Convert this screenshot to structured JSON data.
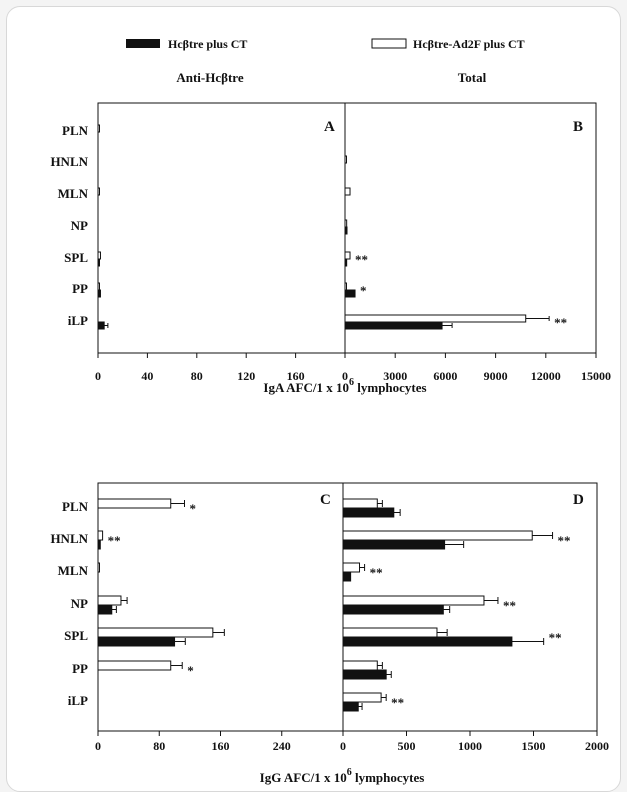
{
  "legend": {
    "series1": "Hcβtre plus CT",
    "series2": "Hcβtre-Ad2F plus CT"
  },
  "headers": {
    "left": "Anti-Hcβtre",
    "right": "Total"
  },
  "xlabel_top": {
    "main": "IgA AFC/1 x 10",
    "sup": "6",
    "tail": " lymphocytes"
  },
  "xlabel_bottom": {
    "main": "IgG AFC/1 x 10",
    "sup": "6",
    "tail": " lymphocytes"
  },
  "colors": {
    "series1": "#111111",
    "series2": "#ffffff"
  },
  "chart_data": [
    {
      "panel": "A",
      "type": "bar",
      "orientation": "horizontal",
      "categories": [
        "PLN",
        "HNLN",
        "MLN",
        "NP",
        "SPL",
        "PP",
        "iLP"
      ],
      "xlim": [
        0,
        200
      ],
      "xticks": [
        "0",
        "40",
        "80",
        "120",
        "160"
      ],
      "series": [
        {
          "name": "Hcβtre plus CT",
          "values": [
            0,
            0,
            0,
            0,
            1,
            2,
            5
          ],
          "errors": [
            0,
            0,
            0,
            0,
            0,
            0,
            3
          ]
        },
        {
          "name": "Hcβtre-Ad2F plus CT",
          "values": [
            1,
            0,
            1,
            0,
            2,
            1,
            0
          ],
          "errors": [
            0,
            0,
            0,
            0,
            0,
            0,
            0
          ]
        }
      ],
      "annotations": [
        "",
        "",
        "",
        "",
        "",
        "",
        ""
      ]
    },
    {
      "panel": "B",
      "type": "bar",
      "orientation": "horizontal",
      "categories": [
        "PLN",
        "HNLN",
        "MLN",
        "NP",
        "SPL",
        "PP",
        "iLP"
      ],
      "xlim": [
        0,
        15000
      ],
      "xticks": [
        "0",
        "3000",
        "6000",
        "9000",
        "12000",
        "15000"
      ],
      "series": [
        {
          "name": "Hcβtre plus CT",
          "values": [
            0,
            0,
            0,
            120,
            100,
            600,
            5800
          ],
          "errors": [
            0,
            0,
            0,
            0,
            0,
            0,
            600
          ]
        },
        {
          "name": "Hcβtre-Ad2F plus CT",
          "values": [
            0,
            60,
            300,
            100,
            300,
            40,
            10800
          ],
          "errors": [
            0,
            0,
            0,
            0,
            0,
            0,
            1400
          ]
        }
      ],
      "annotations": [
        "",
        "",
        "",
        "",
        "**",
        "*",
        "**"
      ]
    },
    {
      "panel": "C",
      "type": "bar",
      "orientation": "horizontal",
      "categories": [
        "PLN",
        "HNLN",
        "MLN",
        "NP",
        "SPL",
        "PP",
        "iLP"
      ],
      "xlim": [
        0,
        320
      ],
      "xticks": [
        "0",
        "80",
        "160",
        "240"
      ],
      "series": [
        {
          "name": "Hcβtre plus CT",
          "values": [
            0,
            3,
            0,
            18,
            100,
            0,
            0
          ],
          "errors": [
            0,
            0,
            0,
            6,
            14,
            0,
            0
          ]
        },
        {
          "name": "Hcβtre-Ad2F plus CT",
          "values": [
            95,
            6,
            1,
            30,
            150,
            95,
            0
          ],
          "errors": [
            18,
            0,
            0,
            8,
            15,
            15,
            0
          ]
        }
      ],
      "annotations": [
        "*",
        "**",
        "",
        "",
        "",
        "*",
        ""
      ]
    },
    {
      "panel": "D",
      "type": "bar",
      "orientation": "horizontal",
      "categories": [
        "PLN",
        "HNLN",
        "MLN",
        "NP",
        "SPL",
        "PP",
        "iLP"
      ],
      "xlim": [
        0,
        2000
      ],
      "xticks": [
        "0",
        "500",
        "1000",
        "1500",
        "2000"
      ],
      "series": [
        {
          "name": "Hcβtre plus CT",
          "values": [
            400,
            800,
            60,
            790,
            1330,
            340,
            120
          ],
          "errors": [
            50,
            150,
            0,
            50,
            250,
            40,
            30
          ]
        },
        {
          "name": "Hcβtre-Ad2F plus CT",
          "values": [
            270,
            1490,
            130,
            1110,
            740,
            270,
            300
          ],
          "errors": [
            40,
            160,
            40,
            110,
            80,
            40,
            40
          ]
        }
      ],
      "annotations": [
        "",
        "**",
        "**",
        "**",
        "**",
        "",
        "**"
      ]
    }
  ]
}
